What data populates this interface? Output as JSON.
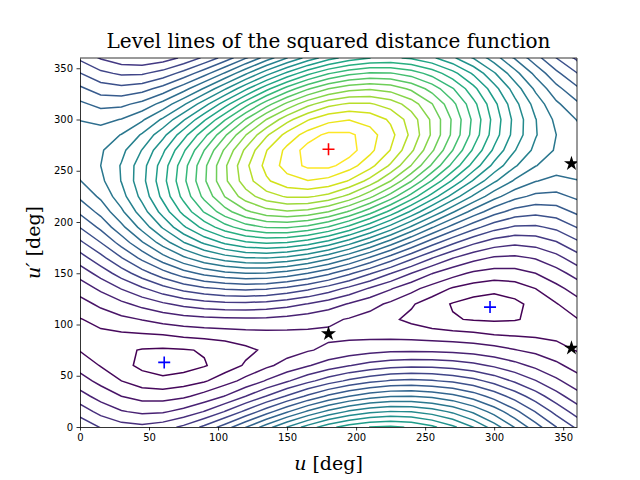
{
  "chart_data": {
    "type": "contour",
    "title": "Level lines of the squared distance function",
    "x_label": "u [deg]",
    "y_label": "u′ [deg]",
    "xlim": [
      0,
      360
    ],
    "ylim": [
      0,
      360
    ],
    "xticks": [
      0,
      50,
      100,
      150,
      200,
      250,
      300,
      350
    ],
    "yticks": [
      0,
      50,
      100,
      150,
      200,
      250,
      300,
      350
    ],
    "color": "viridis",
    "contour": {
      "u": [
        0,
        15,
        30,
        45,
        60,
        75,
        90,
        105,
        120,
        135,
        150,
        165,
        180,
        195,
        210,
        225,
        240,
        255,
        270,
        285,
        300,
        315,
        330,
        345,
        360
      ],
      "v": [
        0,
        15,
        30,
        45,
        60,
        75,
        90,
        105,
        120,
        135,
        150,
        165,
        180,
        195,
        210,
        225,
        240,
        255,
        270,
        285,
        300,
        315,
        330,
        345,
        360
      ],
      "levels": [
        0.6,
        0.75,
        0.95,
        1.2,
        1.45,
        1.7,
        1.95,
        2.2,
        2.45,
        2.7,
        2.95,
        3.2,
        3.45,
        3.7,
        3.95,
        4.2,
        4.45,
        4.7,
        4.95,
        5.2,
        5.45,
        5.7,
        5.95,
        6.2,
        6.45,
        6.7,
        6.95,
        7.15
      ],
      "cells": [
        [
          1.9,
          1.68,
          1.55,
          1.51,
          1.58,
          1.75,
          2.0,
          2.31,
          2.68,
          3.07,
          3.45,
          3.8,
          4.1,
          4.32,
          4.45,
          4.49,
          4.42,
          4.25,
          4.0,
          3.69,
          3.32,
          2.93,
          2.55,
          2.2,
          1.9
        ],
        [
          1.59,
          1.37,
          1.22,
          1.15,
          1.17,
          1.28,
          1.46,
          1.71,
          2.01,
          2.34,
          2.67,
          2.99,
          3.27,
          3.49,
          3.64,
          3.71,
          3.69,
          3.58,
          3.4,
          3.15,
          2.85,
          2.52,
          2.19,
          1.87,
          1.59
        ],
        [
          1.3,
          1.1,
          0.95,
          0.86,
          0.85,
          0.91,
          1.03,
          1.21,
          1.45,
          1.71,
          1.98,
          2.25,
          2.5,
          2.7,
          2.85,
          2.94,
          2.95,
          2.89,
          2.77,
          2.59,
          2.35,
          2.09,
          1.82,
          1.55,
          1.3
        ],
        [
          1.05,
          0.88,
          0.75,
          0.66,
          0.63,
          0.66,
          0.73,
          0.85,
          1.02,
          1.22,
          1.42,
          1.63,
          1.83,
          2.0,
          2.13,
          2.22,
          2.25,
          2.22,
          2.15,
          2.03,
          1.86,
          1.66,
          1.46,
          1.25,
          1.05
        ],
        [
          0.86,
          0.74,
          0.64,
          0.57,
          0.54,
          0.55,
          0.59,
          0.66,
          0.77,
          0.9,
          1.04,
          1.18,
          1.32,
          1.44,
          1.54,
          1.61,
          1.64,
          1.63,
          1.59,
          1.52,
          1.41,
          1.28,
          1.14,
          1.0,
          0.86
        ],
        [
          0.74,
          0.68,
          0.63,
          0.59,
          0.58,
          0.59,
          0.61,
          0.65,
          0.71,
          0.78,
          0.85,
          0.93,
          1.0,
          1.06,
          1.11,
          1.15,
          1.16,
          1.15,
          1.13,
          1.09,
          1.03,
          0.96,
          0.89,
          0.81,
          0.74
        ],
        [
          0.7,
          0.71,
          0.72,
          0.73,
          0.75,
          0.78,
          0.8,
          0.82,
          0.85,
          0.87,
          0.88,
          0.89,
          0.9,
          0.89,
          0.88,
          0.87,
          0.85,
          0.82,
          0.8,
          0.78,
          0.75,
          0.73,
          0.72,
          0.71,
          0.7
        ],
        [
          0.74,
          0.81,
          0.89,
          0.96,
          1.03,
          1.09,
          1.13,
          1.15,
          1.16,
          1.15,
          1.11,
          1.06,
          1.0,
          0.93,
          0.85,
          0.78,
          0.71,
          0.65,
          0.61,
          0.59,
          0.58,
          0.59,
          0.63,
          0.68,
          0.74
        ],
        [
          0.86,
          1.0,
          1.14,
          1.28,
          1.41,
          1.52,
          1.59,
          1.63,
          1.64,
          1.61,
          1.54,
          1.44,
          1.32,
          1.18,
          1.04,
          0.9,
          0.77,
          0.66,
          0.59,
          0.55,
          0.54,
          0.57,
          0.64,
          0.74,
          0.86
        ],
        [
          1.05,
          1.25,
          1.46,
          1.66,
          1.86,
          2.03,
          2.15,
          2.22,
          2.25,
          2.22,
          2.13,
          2.0,
          1.83,
          1.63,
          1.42,
          1.22,
          1.02,
          0.85,
          0.73,
          0.66,
          0.63,
          0.66,
          0.75,
          0.88,
          1.05
        ],
        [
          1.3,
          1.55,
          1.82,
          2.09,
          2.35,
          2.59,
          2.77,
          2.89,
          2.95,
          2.94,
          2.85,
          2.7,
          2.5,
          2.25,
          1.98,
          1.71,
          1.45,
          1.21,
          1.03,
          0.91,
          0.85,
          0.86,
          0.95,
          1.1,
          1.3
        ],
        [
          1.59,
          1.87,
          2.19,
          2.52,
          2.85,
          3.15,
          3.4,
          3.58,
          3.69,
          3.71,
          3.64,
          3.49,
          3.27,
          2.99,
          2.67,
          2.34,
          2.01,
          1.71,
          1.46,
          1.28,
          1.17,
          1.15,
          1.22,
          1.37,
          1.59
        ],
        [
          1.9,
          2.2,
          2.55,
          2.93,
          3.32,
          3.69,
          4.0,
          4.25,
          4.42,
          4.49,
          4.45,
          4.32,
          4.1,
          3.8,
          3.45,
          3.07,
          2.68,
          2.31,
          2.0,
          1.75,
          1.58,
          1.51,
          1.55,
          1.68,
          1.9
        ],
        [
          2.21,
          2.51,
          2.88,
          3.29,
          3.73,
          4.16,
          4.54,
          4.85,
          5.09,
          5.22,
          5.23,
          5.13,
          4.93,
          4.63,
          4.26,
          3.85,
          3.41,
          2.98,
          2.6,
          2.29,
          2.05,
          1.92,
          1.91,
          2.01,
          2.21
        ],
        [
          2.5,
          2.78,
          3.15,
          3.58,
          4.05,
          4.53,
          4.97,
          5.35,
          5.65,
          5.85,
          5.92,
          5.87,
          5.7,
          5.42,
          5.05,
          4.62,
          4.15,
          3.67,
          3.23,
          2.85,
          2.55,
          2.35,
          2.28,
          2.33,
          2.5
        ],
        [
          2.75,
          3.0,
          3.35,
          3.78,
          4.27,
          4.78,
          5.27,
          5.71,
          6.08,
          6.34,
          6.48,
          6.49,
          6.37,
          6.12,
          5.77,
          5.34,
          4.85,
          4.34,
          3.85,
          3.41,
          3.04,
          2.78,
          2.64,
          2.63,
          2.75
        ],
        [
          2.94,
          3.14,
          3.46,
          3.87,
          4.36,
          4.89,
          5.41,
          5.9,
          6.33,
          6.66,
          6.86,
          6.94,
          6.88,
          6.68,
          6.36,
          5.95,
          5.46,
          4.93,
          4.41,
          3.92,
          3.49,
          3.16,
          2.96,
          2.88,
          2.94
        ],
        [
          3.06,
          3.2,
          3.47,
          3.85,
          4.32,
          4.85,
          5.39,
          5.91,
          6.39,
          6.78,
          7.05,
          7.19,
          7.2,
          7.06,
          6.79,
          6.41,
          5.94,
          5.41,
          4.87,
          4.35,
          3.87,
          3.48,
          3.21,
          3.07,
          3.06
        ],
        [
          3.1,
          3.17,
          3.38,
          3.71,
          4.15,
          4.66,
          5.2,
          5.74,
          6.25,
          6.69,
          7.02,
          7.23,
          7.3,
          7.23,
          7.02,
          6.69,
          6.25,
          5.74,
          5.2,
          4.66,
          4.15,
          3.71,
          3.38,
          3.17,
          3.1
        ],
        [
          3.06,
          3.07,
          3.21,
          3.48,
          3.87,
          4.35,
          4.87,
          5.41,
          5.94,
          6.41,
          6.79,
          7.06,
          7.2,
          7.19,
          7.05,
          6.78,
          6.39,
          5.91,
          5.39,
          4.85,
          4.32,
          3.85,
          3.47,
          3.2,
          3.06
        ],
        [
          2.94,
          2.88,
          2.96,
          3.16,
          3.49,
          3.92,
          4.41,
          4.93,
          5.46,
          5.95,
          6.36,
          6.68,
          6.88,
          6.94,
          6.86,
          6.66,
          6.33,
          5.9,
          5.41,
          4.89,
          4.36,
          3.87,
          3.46,
          3.14,
          2.94
        ],
        [
          2.75,
          2.63,
          2.64,
          2.78,
          3.04,
          3.41,
          3.85,
          4.34,
          4.85,
          5.34,
          5.77,
          6.12,
          6.37,
          6.49,
          6.48,
          6.34,
          6.08,
          5.71,
          5.27,
          4.78,
          4.27,
          3.78,
          3.35,
          3.0,
          2.75
        ],
        [
          2.5,
          2.33,
          2.28,
          2.35,
          2.55,
          2.85,
          3.23,
          3.67,
          4.15,
          4.62,
          5.05,
          5.42,
          5.7,
          5.87,
          5.92,
          5.85,
          5.65,
          5.35,
          4.97,
          4.53,
          4.05,
          3.58,
          3.15,
          2.78,
          2.5
        ],
        [
          2.21,
          2.01,
          1.91,
          1.92,
          2.05,
          2.29,
          2.6,
          2.98,
          3.41,
          3.85,
          4.26,
          4.63,
          4.93,
          5.13,
          5.23,
          5.22,
          5.09,
          4.85,
          4.54,
          4.16,
          3.73,
          3.29,
          2.88,
          2.51,
          2.21
        ],
        [
          1.9,
          1.68,
          1.55,
          1.51,
          1.58,
          1.75,
          2.0,
          2.31,
          2.68,
          3.07,
          3.45,
          3.8,
          4.1,
          4.32,
          4.45,
          4.49,
          4.42,
          4.25,
          4.0,
          3.69,
          3.32,
          2.93,
          2.55,
          2.2,
          1.9
        ]
      ]
    },
    "series": [
      {
        "color": "red",
        "marker": "plus",
        "x": [
          180
        ],
        "values": [
          271
        ]
      },
      {
        "color": "blue",
        "marker": "plus",
        "x": [
          61,
          297
        ],
        "values": [
          63,
          117
        ]
      },
      {
        "color": "black",
        "marker": "star",
        "x": [
          180,
          356,
          356
        ],
        "values": [
          91,
          257,
          77
        ]
      }
    ]
  }
}
